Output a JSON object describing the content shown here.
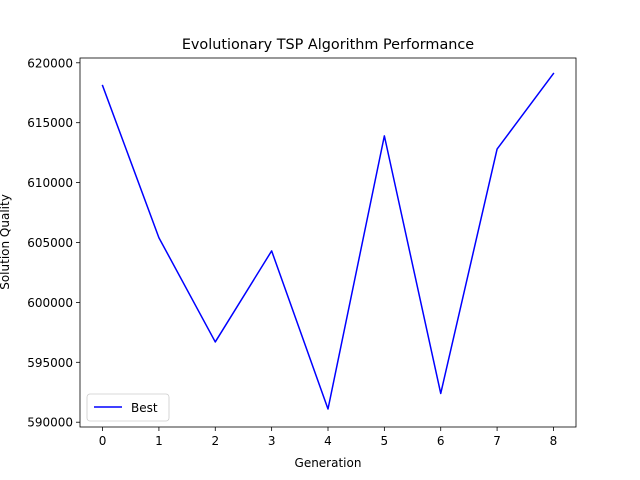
{
  "chart_data": {
    "type": "line",
    "title": "Evolutionary TSP Algorithm Performance",
    "xlabel": "Generation",
    "ylabel": "Solution Quality",
    "x": [
      0,
      1,
      2,
      3,
      4,
      5,
      6,
      7,
      8
    ],
    "xlim": [
      -0.4,
      8.4
    ],
    "ylim": [
      589600,
      620400
    ],
    "xticks": [
      "0",
      "1",
      "2",
      "3",
      "4",
      "5",
      "6",
      "7",
      "8"
    ],
    "yticks": [
      590000,
      595000,
      600000,
      605000,
      610000,
      615000,
      620000
    ],
    "ytick_labels": [
      "590000",
      "595000",
      "600000",
      "605000",
      "610000",
      "615000",
      "620000"
    ],
    "series": [
      {
        "name": "Best",
        "color": "#0000ff",
        "values": [
          618100,
          605400,
          596700,
          604300,
          591100,
          613900,
          592400,
          612800,
          619100
        ]
      }
    ],
    "legend_position": "lower-left",
    "grid": false
  }
}
